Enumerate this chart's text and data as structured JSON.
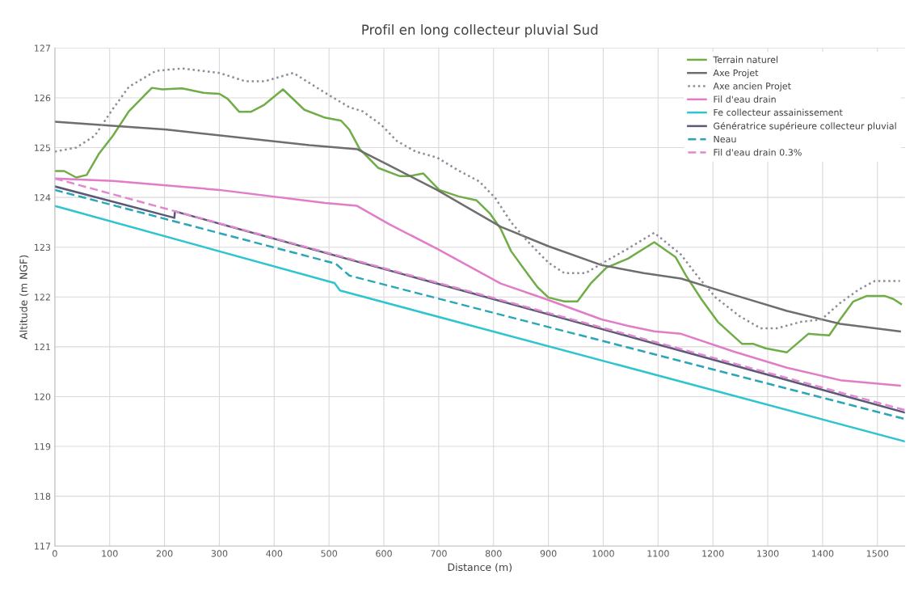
{
  "chart_data": {
    "type": "line",
    "title": "Profil en long collecteur pluvial Sud",
    "xlabel": "Distance (m)",
    "ylabel": "Altitude (m NGF)",
    "xlim": [
      0,
      1550
    ],
    "ylim": [
      117,
      127
    ],
    "xticks": [
      0,
      100,
      200,
      300,
      400,
      500,
      600,
      700,
      800,
      900,
      1000,
      1100,
      1200,
      1300,
      1400,
      1500
    ],
    "yticks": [
      117,
      118,
      119,
      120,
      121,
      122,
      123,
      124,
      125,
      126,
      127
    ],
    "grid": true,
    "legend": "top right",
    "series": [
      {
        "name": "Terrain naturel",
        "color": "#70ad47",
        "line_style": "solid",
        "x": [
          0,
          17,
          39,
          58,
          80,
          106,
          135,
          177,
          196,
          232,
          271,
          300,
          315,
          336,
          358,
          382,
          416,
          455,
          493,
          522,
          537,
          556,
          590,
          628,
          647,
          672,
          701,
          736,
          769,
          794,
          813,
          832,
          861,
          880,
          900,
          929,
          953,
          977,
          1006,
          1045,
          1093,
          1132,
          1151,
          1180,
          1209,
          1253,
          1273,
          1296,
          1335,
          1374,
          1412,
          1432,
          1456,
          1480,
          1514,
          1529,
          1543
        ],
        "values": [
          124.53,
          124.53,
          124.4,
          124.45,
          124.87,
          125.24,
          125.73,
          126.2,
          126.17,
          126.19,
          126.1,
          126.08,
          125.98,
          125.72,
          125.72,
          125.86,
          126.17,
          125.76,
          125.6,
          125.54,
          125.36,
          124.97,
          124.59,
          124.43,
          124.43,
          124.48,
          124.15,
          124.02,
          123.94,
          123.67,
          123.37,
          122.92,
          122.48,
          122.2,
          121.99,
          121.91,
          121.91,
          122.27,
          122.59,
          122.77,
          123.1,
          122.8,
          122.43,
          121.94,
          121.5,
          121.06,
          121.06,
          120.97,
          120.89,
          121.26,
          121.23,
          121.55,
          121.91,
          122.02,
          122.02,
          121.96,
          121.86
        ]
      },
      {
        "name": "Axe Projet",
        "color": "#6e6e6e",
        "line_style": "solid",
        "x": [
          0,
          204,
          464,
          551,
          610,
          697,
          813,
          900,
          997,
          1074,
          1142,
          1239,
          1335,
          1432,
          1541
        ],
        "values": [
          125.52,
          125.36,
          125.05,
          124.97,
          124.64,
          124.15,
          123.41,
          123.02,
          122.64,
          122.48,
          122.37,
          122.04,
          121.72,
          121.46,
          121.31
        ]
      },
      {
        "name": "Axe ancien Projet",
        "color": "#8c8c9a",
        "line_style": "dotted",
        "x": [
          0,
          39,
          73,
          106,
          135,
          184,
          232,
          300,
          348,
          382,
          435,
          493,
          537,
          561,
          595,
          624,
          658,
          697,
          736,
          774,
          803,
          832,
          861,
          900,
          929,
          968,
          997,
          1045,
          1093,
          1142,
          1171,
          1205,
          1248,
          1287,
          1316,
          1360,
          1398,
          1432,
          1466,
          1495,
          1541
        ],
        "values": [
          124.92,
          125.0,
          125.24,
          125.78,
          126.22,
          126.54,
          126.59,
          126.5,
          126.33,
          126.33,
          126.5,
          126.1,
          125.81,
          125.73,
          125.46,
          125.13,
          124.92,
          124.8,
          124.54,
          124.32,
          123.99,
          123.5,
          123.13,
          122.69,
          122.48,
          122.48,
          122.67,
          122.97,
          123.29,
          122.85,
          122.43,
          121.99,
          121.62,
          121.37,
          121.37,
          121.5,
          121.55,
          121.88,
          122.15,
          122.32,
          122.32
        ]
      },
      {
        "name": "Fil d'eau drain",
        "color": "#e07cc8",
        "line_style": "solid",
        "x": [
          0,
          106,
          300,
          493,
          551,
          610,
          697,
          813,
          900,
          997,
          1045,
          1093,
          1142,
          1239,
          1335,
          1432,
          1541
        ],
        "values": [
          124.38,
          124.33,
          124.15,
          123.89,
          123.83,
          123.46,
          122.97,
          122.27,
          121.94,
          121.55,
          121.42,
          121.31,
          121.26,
          120.9,
          120.58,
          120.33,
          120.22
        ]
      },
      {
        "name": "Fe collecteur assainissement",
        "color": "#2ec4d0",
        "line_style": "solid",
        "x": [
          0,
          510,
          520,
          1550
        ],
        "values": [
          123.83,
          122.28,
          122.13,
          119.1
        ]
      },
      {
        "name": "Génératrice supérieure collecteur pluvial",
        "color": "#5a5a78",
        "line_style": "solid",
        "x": [
          0,
          218,
          219,
          1550
        ],
        "values": [
          124.22,
          123.59,
          123.72,
          119.68
        ]
      },
      {
        "name": "Neau",
        "color": "#2aa6b8",
        "line_style": "dashed",
        "x": [
          0,
          512,
          537,
          1550
        ],
        "values": [
          124.15,
          122.67,
          122.43,
          119.55
        ]
      },
      {
        "name": "Fil d'eau drain 0.3%",
        "color": "#e089d0",
        "line_style": "dashed",
        "x": [
          0,
          1550
        ],
        "values": [
          124.38,
          119.73
        ]
      }
    ]
  }
}
